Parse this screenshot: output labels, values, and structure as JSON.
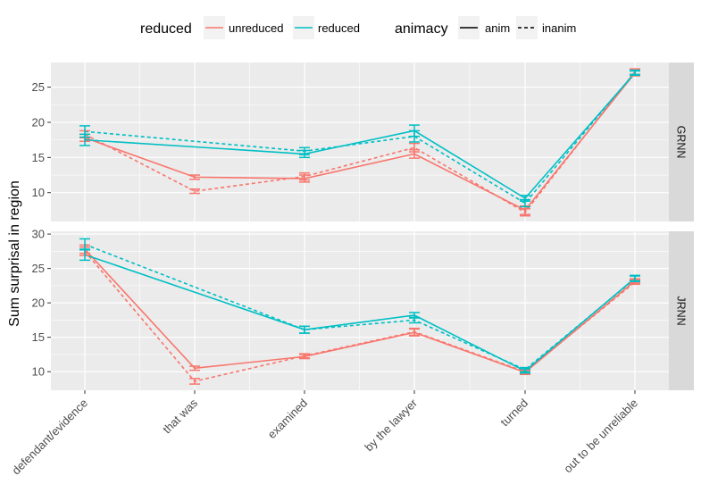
{
  "chart_data": {
    "type": "line",
    "ylabel": "Sum surprisal in region",
    "categories": [
      "defendant/evidence",
      "that was",
      "examined",
      "by the lawyer",
      "turned",
      "out to be unreliable"
    ],
    "legend": {
      "placement": "top",
      "reduced": {
        "title": "reduced",
        "entries": [
          "unreduced",
          "reduced"
        ]
      },
      "animacy": {
        "title": "animacy",
        "entries": [
          "anim",
          "inanim"
        ]
      }
    },
    "colors": {
      "unreduced": "#F8766D",
      "reduced": "#00BFC4"
    },
    "grid": true,
    "panels": [
      {
        "label": "GRNN",
        "ylim": [
          5.9,
          28.5
        ],
        "yticks": [
          10,
          15,
          20,
          25
        ],
        "series": [
          {
            "reduced": "unreduced",
            "animacy": "anim",
            "values": [
              17.8,
              12.2,
              12.0,
              15.5,
              7.5,
              27.0
            ],
            "err": [
              0.5,
              0.3,
              0.5,
              0.6,
              0.6,
              0.4
            ]
          },
          {
            "reduced": "unreduced",
            "animacy": "inanim",
            "values": [
              18.3,
              10.2,
              12.3,
              16.4,
              7.2,
              27.2
            ],
            "err": [
              0.5,
              0.3,
              0.5,
              0.6,
              0.5,
              0.4
            ]
          },
          {
            "reduced": "reduced",
            "animacy": "anim",
            "values": [
              17.5,
              null,
              15.5,
              18.8,
              9.2,
              27.0
            ],
            "err": [
              0.8,
              0,
              0.5,
              0.8,
              0.4,
              0.3
            ]
          },
          {
            "reduced": "reduced",
            "animacy": "inanim",
            "values": [
              18.7,
              null,
              15.9,
              18.0,
              8.5,
              27.1
            ],
            "err": [
              0.8,
              0,
              0.5,
              0.8,
              0.5,
              0.3
            ]
          }
        ]
      },
      {
        "label": "JRNN",
        "ylim": [
          7.3,
          30.4
        ],
        "yticks": [
          10,
          15,
          20,
          25,
          30
        ],
        "series": [
          {
            "reduced": "unreduced",
            "animacy": "anim",
            "values": [
              27.8,
              10.5,
              12.2,
              15.7,
              9.9,
              23.2
            ],
            "err": [
              0.6,
              0.3,
              0.3,
              0.5,
              0.3,
              0.3
            ]
          },
          {
            "reduced": "unreduced",
            "animacy": "inanim",
            "values": [
              27.5,
              8.6,
              12.3,
              15.8,
              10.0,
              23.0
            ],
            "err": [
              0.6,
              0.4,
              0.3,
              0.5,
              0.3,
              0.3
            ]
          },
          {
            "reduced": "reduced",
            "animacy": "anim",
            "values": [
              27.0,
              null,
              16.1,
              18.2,
              10.1,
              23.6
            ],
            "err": [
              0.8,
              0,
              0.5,
              0.4,
              0.3,
              0.4
            ]
          },
          {
            "reduced": "reduced",
            "animacy": "inanim",
            "values": [
              28.5,
              null,
              16.1,
              17.5,
              10.3,
              23.5
            ],
            "err": [
              0.8,
              0,
              0.5,
              0.4,
              0.3,
              0.4
            ]
          }
        ]
      }
    ]
  }
}
